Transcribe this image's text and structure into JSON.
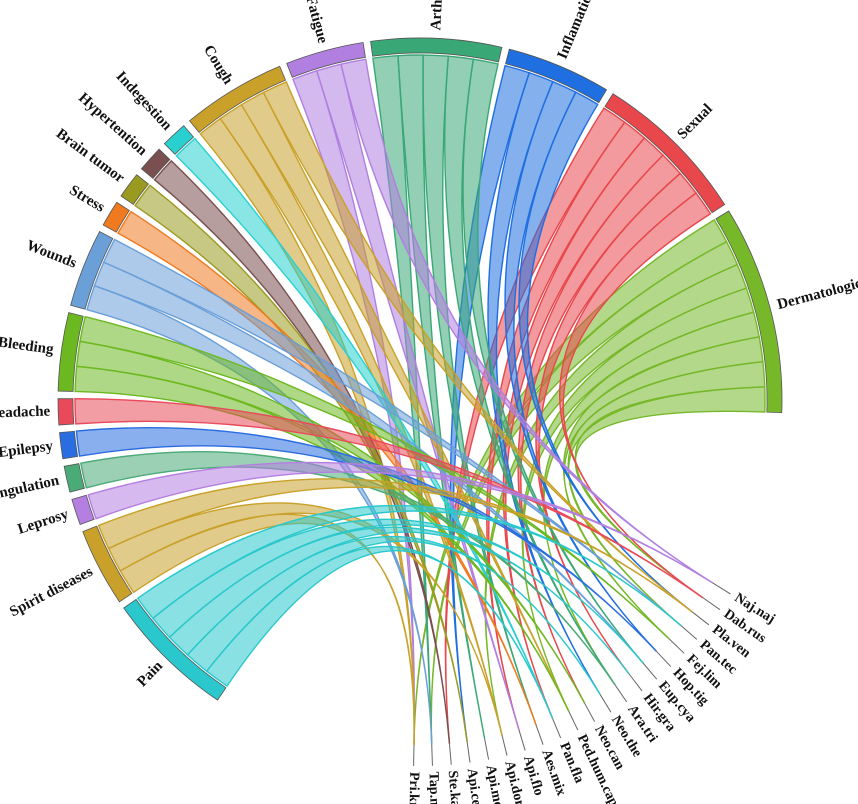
{
  "chart_data": {
    "type": "chord",
    "uses": [
      {
        "label": "Dermatological",
        "color": "#77b82a",
        "weight": 8
      },
      {
        "label": "Sexual",
        "color": "#e8474c",
        "weight": 6
      },
      {
        "label": "Inflamation",
        "color": "#1f6fe0",
        "weight": 4
      },
      {
        "label": "Arthritis",
        "color": "#3aa876",
        "weight": 5
      },
      {
        "label": "Fatigue",
        "color": "#b07fe0",
        "weight": 3
      },
      {
        "label": "Cough",
        "color": "#c9a12a",
        "weight": 4
      },
      {
        "label": "Indegestion",
        "color": "#2ad0d0",
        "weight": 1
      },
      {
        "label": "Hypertention",
        "color": "#7a4f4f",
        "weight": 1
      },
      {
        "label": "Brain tumor",
        "color": "#9a9a20",
        "weight": 1
      },
      {
        "label": "Stress",
        "color": "#f07a20",
        "weight": 1
      },
      {
        "label": "Wounds",
        "color": "#6a9fd8",
        "weight": 3
      },
      {
        "label": "Bleeding",
        "color": "#6cb820",
        "weight": 3
      },
      {
        "label": "Headache",
        "color": "#e84a5a",
        "weight": 1
      },
      {
        "label": "Epilepsy",
        "color": "#2a6de0",
        "weight": 1
      },
      {
        "label": "Strangulation",
        "color": "#4aaa78",
        "weight": 1
      },
      {
        "label": "Leprosy",
        "color": "#b47fe0",
        "weight": 1
      },
      {
        "label": "Spirit diseases",
        "color": "#c9a12a",
        "weight": 3
      },
      {
        "label": "Pain",
        "color": "#2ac8cc",
        "weight": 5
      }
    ],
    "species": [
      {
        "label": "Pri.kra",
        "color": "#c9a12a"
      },
      {
        "label": "Tap.mel",
        "color": "#77b82a"
      },
      {
        "label": "Ste.kas",
        "color": "#7a4f4f"
      },
      {
        "label": "Api.cer",
        "color": "#9a9a20"
      },
      {
        "label": "Api.mel",
        "color": "#7a4f4f"
      },
      {
        "label": "Api.dor",
        "color": "#c9a12a"
      },
      {
        "label": "Api.flo",
        "color": "#e8474c"
      },
      {
        "label": "Aes.mix",
        "color": "#f07a20"
      },
      {
        "label": "Pan.fla",
        "color": "#2ad0d0"
      },
      {
        "label": "Ped.hum.cap",
        "color": "#77b82a"
      },
      {
        "label": "Neo.can",
        "color": "#e8474c"
      },
      {
        "label": "Neo.the",
        "color": "#1f6fe0"
      },
      {
        "label": "Ara.tri",
        "color": "#3aa876"
      },
      {
        "label": "Hir.gra",
        "color": "#b07fe0"
      },
      {
        "label": "Eup.cya",
        "color": "#2ac8cc"
      },
      {
        "label": "Hop.tig",
        "color": "#1f6fe0"
      },
      {
        "label": "Fej.lim",
        "color": "#77b82a"
      },
      {
        "label": "Pan.tec",
        "color": "#2ac8cc"
      },
      {
        "label": "Pla.ven",
        "color": "#c9a12a"
      },
      {
        "label": "Dab.rus",
        "color": "#e8474c"
      },
      {
        "label": "Naj.naj",
        "color": "#b07fe0"
      }
    ],
    "links": [
      [
        0,
        0
      ],
      [
        0,
        1
      ],
      [
        0,
        5
      ],
      [
        0,
        9
      ],
      [
        0,
        12
      ],
      [
        0,
        16
      ],
      [
        0,
        17
      ],
      [
        0,
        19
      ],
      [
        1,
        2
      ],
      [
        1,
        6
      ],
      [
        1,
        8
      ],
      [
        1,
        10
      ],
      [
        1,
        13
      ],
      [
        1,
        19
      ],
      [
        2,
        3
      ],
      [
        2,
        11
      ],
      [
        2,
        15
      ],
      [
        2,
        18
      ],
      [
        3,
        1
      ],
      [
        3,
        4
      ],
      [
        3,
        7
      ],
      [
        3,
        12
      ],
      [
        3,
        14
      ],
      [
        4,
        0
      ],
      [
        4,
        6
      ],
      [
        4,
        20
      ],
      [
        5,
        0
      ],
      [
        5,
        5
      ],
      [
        5,
        9
      ],
      [
        5,
        18
      ],
      [
        6,
        8
      ],
      [
        7,
        2
      ],
      [
        8,
        3
      ],
      [
        9,
        7
      ],
      [
        10,
        1
      ],
      [
        10,
        14
      ],
      [
        10,
        17
      ],
      [
        11,
        9
      ],
      [
        11,
        10
      ],
      [
        11,
        16
      ],
      [
        12,
        19
      ],
      [
        13,
        15
      ],
      [
        14,
        12
      ],
      [
        15,
        20
      ],
      [
        16,
        0
      ],
      [
        16,
        5
      ],
      [
        16,
        18
      ],
      [
        17,
        8
      ],
      [
        17,
        11
      ],
      [
        17,
        13
      ],
      [
        17,
        14
      ],
      [
        17,
        17
      ]
    ]
  }
}
